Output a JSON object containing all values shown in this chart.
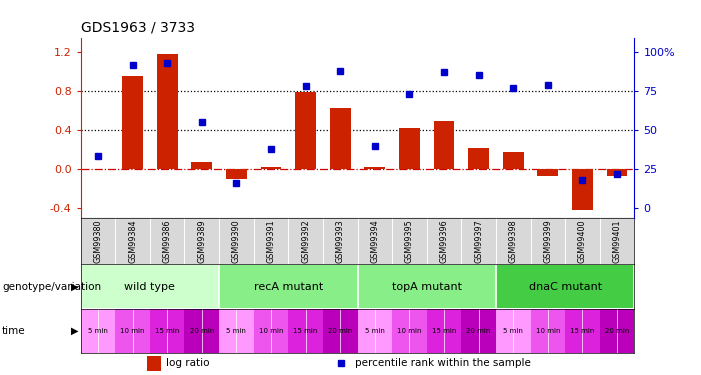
{
  "title": "GDS1963 / 3733",
  "samples": [
    "GSM99380",
    "GSM99384",
    "GSM99386",
    "GSM99389",
    "GSM99390",
    "GSM99391",
    "GSM99392",
    "GSM99393",
    "GSM99394",
    "GSM99395",
    "GSM99396",
    "GSM99397",
    "GSM99398",
    "GSM99399",
    "GSM99400",
    "GSM99401"
  ],
  "log_ratio": [
    0.0,
    0.95,
    1.18,
    0.07,
    -0.1,
    0.02,
    0.79,
    0.63,
    0.02,
    0.42,
    0.49,
    0.21,
    0.17,
    -0.07,
    -0.42,
    -0.07
  ],
  "pct_rank": [
    33,
    92,
    93,
    55,
    16,
    38,
    78,
    88,
    40,
    73,
    87,
    85,
    77,
    79,
    18,
    22
  ],
  "bar_color": "#cc2200",
  "dot_color": "#0000cc",
  "zero_line_color": "#cc0000",
  "bg_color": "#f0f0f0",
  "yticks_left": [
    -0.4,
    0.0,
    0.4,
    0.8,
    1.2
  ],
  "yticks_right": [
    0,
    25,
    50,
    75,
    100
  ],
  "ylim_left": [
    -0.5,
    1.35
  ],
  "hlines": [
    0.4,
    0.8
  ],
  "genotype_groups": [
    {
      "label": "wild type",
      "start": 0,
      "end": 3,
      "color": "#ccffcc"
    },
    {
      "label": "recA mutant",
      "start": 4,
      "end": 7,
      "color": "#88ee88"
    },
    {
      "label": "topA mutant",
      "start": 8,
      "end": 11,
      "color": "#88ee88"
    },
    {
      "label": "dnaC mutant",
      "start": 12,
      "end": 15,
      "color": "#44cc44"
    }
  ],
  "time_labels": [
    "5 min",
    "10 min",
    "15 min",
    "20 min",
    "5 min",
    "10 min",
    "15 min",
    "20 min",
    "5 min",
    "10 min",
    "15 min",
    "20 min",
    "5 min",
    "10 min",
    "15 min",
    "20 min"
  ],
  "time_colors": [
    "#ff99ff",
    "#ee55ee",
    "#dd22dd",
    "#bb00bb",
    "#ff99ff",
    "#ee55ee",
    "#dd22dd",
    "#bb00bb",
    "#ff99ff",
    "#ee55ee",
    "#dd22dd",
    "#bb00bb",
    "#ff99ff",
    "#ee55ee",
    "#dd22dd",
    "#bb00bb"
  ],
  "genotype_label": "genotype/variation",
  "time_label": "time",
  "legend_bar": "log ratio",
  "legend_dot": "percentile rank within the sample"
}
